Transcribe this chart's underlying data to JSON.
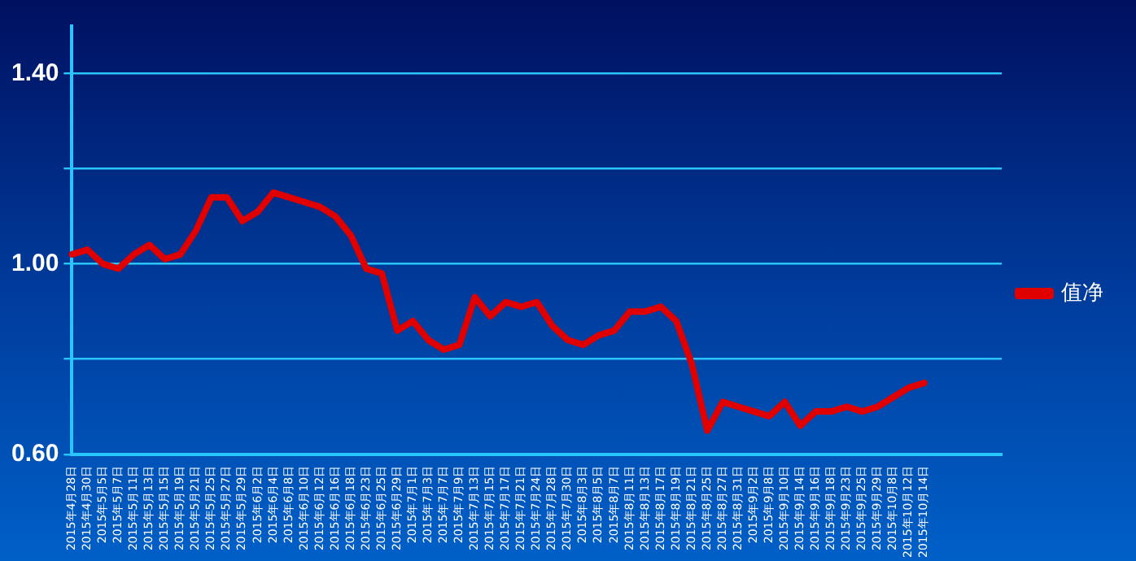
{
  "chart_data": {
    "type": "line",
    "categories": [
      "2015年4月28日",
      "2015年4月30日",
      "2015年5月5日",
      "2015年5月7日",
      "2015年5月11日",
      "2015年5月13日",
      "2015年5月15日",
      "2015年5月19日",
      "2015年5月21日",
      "2015年5月25日",
      "2015年5月27日",
      "2015年5月29日",
      "2015年6月2日",
      "2015年6月4日",
      "2015年6月8日",
      "2015年6月10日",
      "2015年6月12日",
      "2015年6月16日",
      "2015年6月18日",
      "2015年6月23日",
      "2015年6月25日",
      "2015年6月29日",
      "2015年7月1日",
      "2015年7月3日",
      "2015年7月7日",
      "2015年7月9日",
      "2015年7月13日",
      "2015年7月15日",
      "2015年7月17日",
      "2015年7月21日",
      "2015年7月24日",
      "2015年7月28日",
      "2015年7月30日",
      "2015年8月3日",
      "2015年8月5日",
      "2015年8月7日",
      "2015年8月11日",
      "2015年8月13日",
      "2015年8月17日",
      "2015年8月19日",
      "2015年8月21日",
      "2015年8月25日",
      "2015年8月27日",
      "2015年8月31日",
      "2015年9月2日",
      "2015年9月8日",
      "2015年9月10日",
      "2015年9月14日",
      "2015年9月16日",
      "2015年9月18日",
      "2015年9月23日",
      "2015年9月25日",
      "2015年9月29日",
      "2015年10月8日",
      "2015年10月12日",
      "2015年10月14日",
      null,
      null,
      null,
      null,
      null
    ],
    "series": [
      {
        "name": "值净",
        "color": "#e00000",
        "values": [
          1.02,
          1.03,
          1.0,
          0.99,
          1.02,
          1.04,
          1.01,
          1.02,
          1.07,
          1.14,
          1.14,
          1.09,
          1.11,
          1.15,
          1.14,
          1.13,
          1.12,
          1.1,
          1.06,
          0.99,
          0.98,
          0.86,
          0.88,
          0.84,
          0.82,
          0.83,
          0.93,
          0.89,
          0.92,
          0.91,
          0.92,
          0.87,
          0.84,
          0.83,
          0.85,
          0.86,
          0.9,
          0.9,
          0.91,
          0.88,
          0.79,
          0.65,
          0.71,
          0.7,
          0.69,
          0.68,
          0.71,
          0.66,
          0.69,
          0.69,
          0.7,
          0.69,
          0.7,
          0.72,
          0.74,
          0.75,
          null,
          null,
          null,
          null,
          null
        ]
      }
    ],
    "ylim": [
      0.6,
      1.5
    ],
    "yticks": [
      {
        "value": 0.6,
        "label": "0.60"
      },
      {
        "value": 0.8,
        "label": null
      },
      {
        "value": 1.0,
        "label": "1.00"
      },
      {
        "value": 1.2,
        "label": null
      },
      {
        "value": 1.4,
        "label": "1.40"
      }
    ],
    "grid": "y",
    "legend": "right",
    "marker": "none",
    "line_style": "solid"
  }
}
